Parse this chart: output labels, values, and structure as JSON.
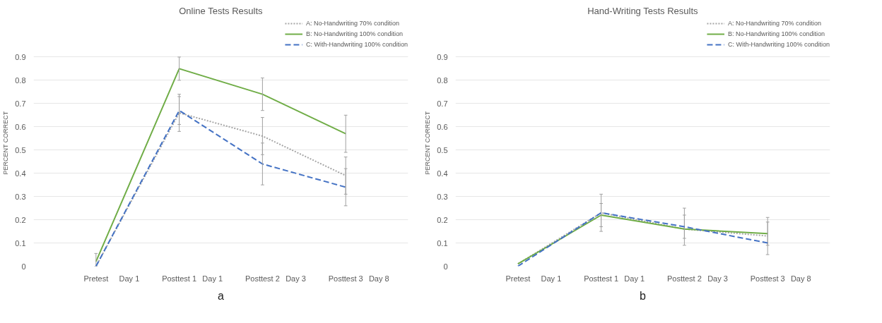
{
  "chart_data": [
    {
      "type": "line",
      "title": "Online Tests Results",
      "ylabel": "PERCENT CORRECT",
      "categories": [
        "Pretest",
        "Posttest 1",
        "Posttest 2",
        "Posttest 3"
      ],
      "ylim": [
        0,
        0.9
      ],
      "yticks": [
        0,
        0.1,
        0.2,
        0.3,
        0.4,
        0.5,
        0.6,
        0.7,
        0.8,
        0.9
      ],
      "grid": "y",
      "legend": "top right",
      "series": [
        {
          "name": "A: No-Handwriting 70% condition",
          "color": "#a6a6a6",
          "line_style": "dotted",
          "values": [
            0,
            0.66,
            0.56,
            0.39
          ],
          "errors": [
            null,
            [
              0.58,
              0.74
            ],
            [
              0.48,
              0.64
            ],
            [
              0.31,
              0.47
            ]
          ]
        },
        {
          "name": "B: No-Handwriting 100% condition",
          "color": "#70ad47",
          "line_style": "solid",
          "values": [
            0.02,
            0.85,
            0.74,
            0.57
          ],
          "errors": [
            [
              0,
              0.055
            ],
            [
              0.8,
              0.9
            ],
            [
              0.67,
              0.81
            ],
            [
              0.49,
              0.65
            ]
          ]
        },
        {
          "name": "C: With-Handwriting 100% condition",
          "color": "#4472c4",
          "line_style": "dashed",
          "values": [
            0,
            0.67,
            0.44,
            0.34
          ],
          "errors": [
            null,
            [
              0.61,
              0.73
            ],
            [
              0.35,
              0.53
            ],
            [
              0.26,
              0.42
            ]
          ]
        }
      ],
      "annotations": [
        "Day 1",
        "Day 1",
        "Day 3",
        "Day 8",
        "a"
      ]
    },
    {
      "type": "line",
      "title": "Hand-Writing Tests Results",
      "ylabel": "PERCENT CORRECT",
      "categories": [
        "Pretest",
        "Posttest 1",
        "Posttest 2",
        "Posttest 3"
      ],
      "ylim": [
        0,
        0.9
      ],
      "yticks": [
        0,
        0.1,
        0.2,
        0.3,
        0.4,
        0.5,
        0.6,
        0.7,
        0.8,
        0.9
      ],
      "grid": "y",
      "legend": "top right",
      "series": [
        {
          "name": "A: No-Handwriting 70% condition",
          "color": "#a6a6a6",
          "line_style": "dotted",
          "values": [
            0.01,
            0.23,
            0.16,
            0.13
          ],
          "errors": [
            null,
            [
              0.17,
              0.27
            ],
            [
              0.12,
              0.22
            ],
            [
              0.09,
              0.19
            ]
          ]
        },
        {
          "name": "B: No-Handwriting 100% condition",
          "color": "#70ad47",
          "line_style": "solid",
          "values": [
            0.01,
            0.22,
            0.16,
            0.14
          ],
          "errors": [
            null,
            [
              0.15,
              0.31
            ],
            [
              0.09,
              0.25
            ],
            [
              0.05,
              0.21
            ]
          ]
        },
        {
          "name": "C: With-Handwriting 100% condition",
          "color": "#4472c4",
          "line_style": "dashed",
          "values": [
            0,
            0.23,
            0.17,
            0.1
          ],
          "errors": [
            null,
            null,
            null,
            null
          ]
        }
      ],
      "annotations": [
        "Day 1",
        "Day 1",
        "Day 3",
        "Day 8",
        "b"
      ]
    }
  ]
}
